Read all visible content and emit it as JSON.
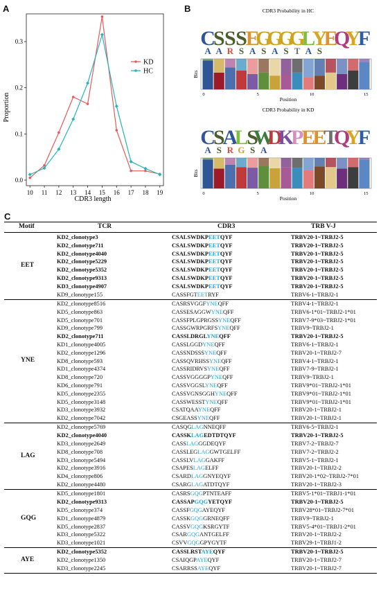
{
  "panel_labels": [
    "A",
    "B",
    "C"
  ],
  "chart_data": [
    {
      "type": "line",
      "xlabel": "CDR3 length",
      "ylabel": "Proportion",
      "x": [
        10,
        11,
        12,
        13,
        14,
        15,
        16,
        17,
        18,
        19
      ],
      "ylim": [
        0,
        0.36
      ],
      "yticks": [
        0.0,
        0.1,
        0.2,
        0.3
      ],
      "ytick_labels": [
        "0.0",
        "0.1",
        "0.2",
        "0.3"
      ],
      "legend": "right",
      "series": [
        {
          "name": "KD",
          "color": "#e8595b",
          "values": [
            0.005,
            0.032,
            0.103,
            0.18,
            0.165,
            0.354,
            0.108,
            0.02,
            0.02,
            0.013
          ]
        },
        {
          "name": "HC",
          "color": "#23b5b9",
          "values": [
            0.012,
            0.026,
            0.067,
            0.132,
            0.21,
            0.315,
            0.16,
            0.04,
            0.025,
            0.012
          ]
        }
      ]
    }
  ],
  "logos": [
    {
      "title": "CDR3 Probability in HC",
      "top_letters": "CSSSEGGGGLYEQYF",
      "second_letters": "AARSASASTAS",
      "ylabel": "Bits",
      "xlabel": "Position",
      "xticks": [
        "0",
        "5",
        "10",
        "15"
      ]
    },
    {
      "title": "CDR3 Probability in KD",
      "top_letters": "CSALSWDKPEETQYF",
      "second_letters": "ASRGSA",
      "ylabel": "Bits",
      "xlabel": "Position",
      "xticks": [
        "0",
        "5",
        "10",
        "15"
      ]
    }
  ],
  "table": {
    "headers": {
      "motif": "Motif",
      "tcr": "TCR",
      "cdr3": "CDR3",
      "trb": "TRB V-J"
    },
    "groups": [
      {
        "motif": "EET",
        "rows": [
          {
            "tcr": "KD2_clonotype3",
            "pre": "CSALSWDKP",
            "hl": "EET",
            "post": "QYF",
            "trb": "TRBV20-1~TRBJ2-5",
            "bold": true
          },
          {
            "tcr": "KD2_clonotype711",
            "pre": "CSALSWDKP",
            "hl": "EET",
            "post": "QYF",
            "trb": "TRBV20-1~TRBJ2-5",
            "bold": true
          },
          {
            "tcr": "KD2_clonotype4040",
            "pre": "CSALSWDKP",
            "hl": "EET",
            "post": "QYF",
            "trb": "TRBV20-1~TRBJ2-5",
            "bold": true
          },
          {
            "tcr": "KD2_clonotype5229",
            "pre": "CSALSWDKP",
            "hl": "EET",
            "post": "QYF",
            "trb": "TRBV20-1~TRBJ2-5",
            "bold": true
          },
          {
            "tcr": "KD2_clonotype5352",
            "pre": "CSALSWDKP",
            "hl": "EET",
            "post": "QYF",
            "trb": "TRBV20-1~TRBJ2-5",
            "bold": true
          },
          {
            "tcr": "KD2_clonotype9313",
            "pre": "CSALSWDKP",
            "hl": "EET",
            "post": "QYF",
            "trb": "TRBV20-1~TRBJ2-5",
            "bold": true
          },
          {
            "tcr": "KD3_clonotype4907",
            "pre": "CSALSWDKP",
            "hl": "EET",
            "post": "QYF",
            "trb": "TRBV20-1~TRBJ2-5",
            "bold": true
          },
          {
            "tcr": "KD9_clonotype155",
            "pre": "CASSFGT",
            "hl": "EET",
            "post": "RYF",
            "trb": "TRBV6-1~TRBJ2-1",
            "bold": false
          }
        ]
      },
      {
        "motif": "YNE",
        "rows": [
          {
            "tcr": "KD2_clonotype8516",
            "pre": "CASRSVGGF",
            "hl": "YNE",
            "post": "QFF",
            "trb": "TRBV4-1~TRBJ2-1",
            "bold": false
          },
          {
            "tcr": "KD5_clonotype863",
            "pre": "CASSESAGGW",
            "hl": "YNE",
            "post": "QFF",
            "trb": "TRBV6-1*01~TRBJ2-1*01",
            "bold": false
          },
          {
            "tcr": "KD5_clonotype701",
            "pre": "CASSFPLGPRGSS",
            "hl": "YNE",
            "post": "QFF",
            "trb": "TRBV7-9*03~TRBJ2-1*01",
            "bold": false
          },
          {
            "tcr": "KD9_clonotype799",
            "pre": "CASSGWRPGRFS",
            "hl": "YNE",
            "post": "QFF",
            "trb": "TRBV9~TRBJ2-1",
            "bold": false
          },
          {
            "tcr": "KD2_clonotype711",
            "pre": "CASSLDRGL",
            "hl": "YNE",
            "post": "QFF",
            "trb": "TRBV20-1~TRBJ2-5",
            "bold": true
          },
          {
            "tcr": "KD1_clonotype4005",
            "pre": "CASSLGGD",
            "hl": "YNE",
            "post": "QFF",
            "trb": "TRBV6-1~TRBJ2-1",
            "bold": false
          },
          {
            "tcr": "KD2_clonotype1296",
            "pre": "CASSNDSSS",
            "hl": "YNE",
            "post": "QFF",
            "trb": "TRBV20-1~TRBJ2-7",
            "bold": false
          },
          {
            "tcr": "KD8_clonotype593",
            "pre": "CASSQVRHSS",
            "hl": "YNE",
            "post": "QFF",
            "trb": "TRBV4-1~TRBJ2-1",
            "bold": false
          },
          {
            "tcr": "KD1_clonotype4374",
            "pre": "CASSRIDRVS",
            "hl": "YNE",
            "post": "QFF",
            "trb": "TRBV7-9~TRBJ2-1",
            "bold": false
          },
          {
            "tcr": "KD8_clonotype720",
            "pre": "CASSVGGGGP",
            "hl": "YNE",
            "post": "QFF",
            "trb": "TRBV9~TRBJ2-1",
            "bold": false
          },
          {
            "tcr": "KD6_clonotype791",
            "pre": "CASSVGGSL",
            "hl": "YNE",
            "post": "QFF",
            "trb": "TRBV9*01~TRBJ2-1*01",
            "bold": false
          },
          {
            "tcr": "KD5_clonotype2355",
            "pre": "CASSVGNSGGH",
            "hl": "YNE",
            "post": "QFF",
            "trb": "TRBV9*01~TRBJ2-1*01",
            "bold": false
          },
          {
            "tcr": "KD5_clonotype3148",
            "pre": "CASSWESST",
            "hl": "YNE",
            "post": "QFF",
            "trb": "TRBV9*01~TRBJ2-1*01",
            "bold": false
          },
          {
            "tcr": "KD3_clonotype3932",
            "pre": "CSATQAA",
            "hl": "YNE",
            "post": "QFF",
            "trb": "TRBV20-1~TRBJ2-1",
            "bold": false
          },
          {
            "tcr": "KD2_clonotype7042",
            "pre": "CSGEASS",
            "hl": "YNE",
            "post": "QFF",
            "trb": "TRBV20-1~TRBJ2-1",
            "bold": false
          }
        ]
      },
      {
        "motif": "LAG",
        "rows": [
          {
            "tcr": "KD2_clonotype5769",
            "pre": "CASQG",
            "hl": "LAG",
            "post": "NNEQFF",
            "trb": "TRBV6-5~TRBJ2-1",
            "bold": false
          },
          {
            "tcr": "KD2_clonotype4040",
            "pre": "CASSK",
            "hl": "LAG",
            "post": "EDTDTQYF",
            "trb": "TRBV20-1~TRBJ2-5",
            "bold": true
          },
          {
            "tcr": "KD3_clonotype2649",
            "pre": "CASS",
            "hl": "LAG",
            "post": "GGDEQYF",
            "trb": "TRBV7-2~TRBJ2-7",
            "bold": false
          },
          {
            "tcr": "KD8_clonotype708",
            "pre": "CASSLEG",
            "hl": "LAG",
            "post": "GWTGELFF",
            "trb": "TRBV7-2~TRBJ2-2",
            "bold": false
          },
          {
            "tcr": "KD3_clonotype5494",
            "pre": "CASSLV",
            "hl": "LAG",
            "post": "GAKFF",
            "trb": "TRBV5-1~TRBJ2-1",
            "bold": false
          },
          {
            "tcr": "KD2_clonotype3916",
            "pre": "CSAPES",
            "hl": "LAG",
            "post": "ELFF",
            "trb": "TRBV20-1~TRBJ2-2",
            "bold": false
          },
          {
            "tcr": "KD4_clonotype806",
            "pre": "CSARD",
            "hl": "LAG",
            "post": "GNYEQYF",
            "trb": "TRBV20-1*02~TRBJ2-7*01",
            "bold": false
          },
          {
            "tcr": "KD2_clonotype4480",
            "pre": "CSARG",
            "hl": "LAG",
            "post": "ATDTQYF",
            "trb": "TRBV20-1~TRBJ2-3",
            "bold": false
          }
        ]
      },
      {
        "motif": "GQG",
        "rows": [
          {
            "tcr": "KD5_clonotype1801",
            "pre": "CASRS",
            "hl": "GQG",
            "post": "PTNTEAFF",
            "trb": "TRBV5-1*01~TRBJ1-1*01",
            "bold": false
          },
          {
            "tcr": "KD2_clonotype9313",
            "pre": "CASSAP",
            "hl": "GQG",
            "post": "YETQYF",
            "trb": "TRBV20-1~TRBJ2-5",
            "bold": true
          },
          {
            "tcr": "KD5_clonotype374",
            "pre": "CASSF",
            "hl": "GQG",
            "post": "AYEQYF",
            "trb": "TRBV28*01~TRBJ2-7*01",
            "bold": false
          },
          {
            "tcr": "KD1_clonotype4879",
            "pre": "CASSK",
            "hl": "GQG",
            "post": "GRNEQFF",
            "trb": "TRBV9~TRBJ2-1",
            "bold": false
          },
          {
            "tcr": "KD5_clonotype2837",
            "pre": "CASSV",
            "hl": "GQG",
            "post": "KSRGYTF",
            "trb": "TRBV5-4*01~TRBJ1-2*01",
            "bold": false
          },
          {
            "tcr": "KD3_clonotype5322",
            "pre": "CSAR",
            "hl": "GQG",
            "post": "ANTGELFF",
            "trb": "TRBV20-1~TRBJ2-2",
            "bold": false
          },
          {
            "tcr": "KD3_clonotype1021",
            "pre": "CSVV",
            "hl": "GQG",
            "post": "GPYGYTF",
            "trb": "TRBV29-1~TRBJ1-2",
            "bold": false
          }
        ]
      },
      {
        "motif": "AYE",
        "rows": [
          {
            "tcr": "KD2_clonotype5352",
            "pre": "CASSLRST",
            "hl": "AYE",
            "post": "QYF",
            "trb": "TRBV20-1~TRBJ2-5",
            "bold": true
          },
          {
            "tcr": "KD2_clonotype1350",
            "pre": "CSAIQGP",
            "hl": "AYE",
            "post": "QYF",
            "trb": "TRBV20-1~TRBJ2-7",
            "bold": false
          },
          {
            "tcr": "KD3_clonotype2245",
            "pre": "CSARRSS",
            "hl": "AYE",
            "post": "QYF",
            "trb": "TRBV20-1~TRBJ2-7",
            "bold": false
          }
        ]
      }
    ]
  }
}
